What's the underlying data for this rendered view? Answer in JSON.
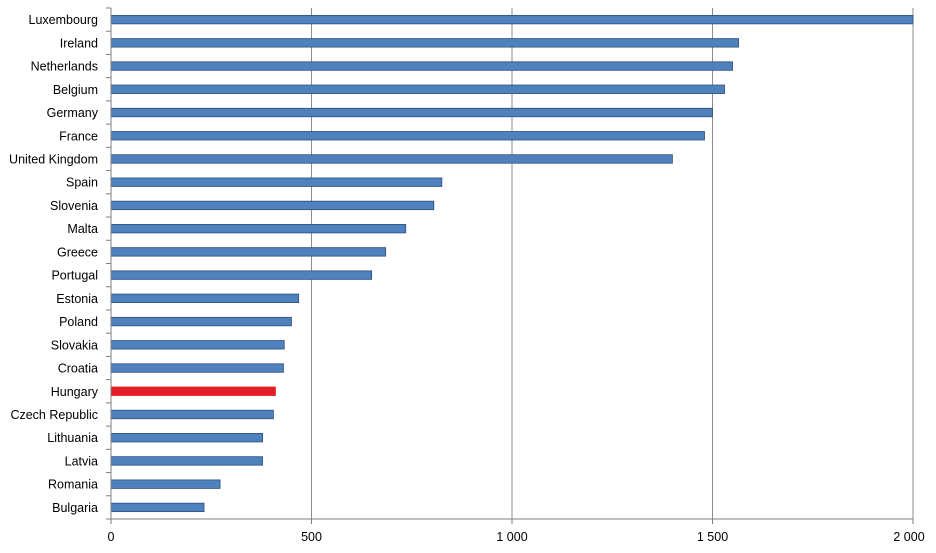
{
  "chart_data": {
    "type": "bar",
    "orientation": "horizontal",
    "categories": [
      "Luxembourg",
      "Ireland",
      "Netherlands",
      "Belgium",
      "Germany",
      "France",
      "United Kingdom",
      "Spain",
      "Slovenia",
      "Malta",
      "Greece",
      "Portugal",
      "Estonia",
      "Poland",
      "Slovakia",
      "Croatia",
      "Hungary",
      "Czech Republic",
      "Lithuania",
      "Latvia",
      "Romania",
      "Bulgaria"
    ],
    "values": [
      2000,
      1565,
      1550,
      1530,
      1500,
      1480,
      1400,
      825,
      805,
      735,
      685,
      650,
      468,
      450,
      432,
      430,
      410,
      405,
      378,
      378,
      272,
      232
    ],
    "highlight": "Hungary",
    "xlim": [
      0,
      2000
    ],
    "xticks": [
      0,
      500,
      1000,
      1500,
      2000
    ],
    "xtick_labels": [
      "0",
      "500",
      "1 000",
      "1 500",
      "2 000"
    ],
    "colors": {
      "bar": "#4f81bd",
      "bar_border": "#2c4f7c",
      "highlight": "#e41e26",
      "grid": "#8c8c8c",
      "axis": "#7f7f7f"
    },
    "grid": true,
    "legend": false,
    "title": "",
    "xlabel": "",
    "ylabel": ""
  }
}
